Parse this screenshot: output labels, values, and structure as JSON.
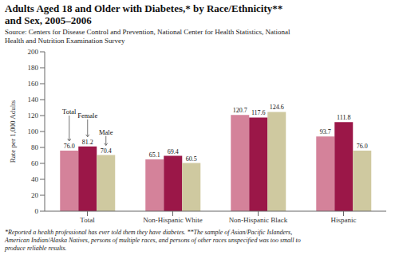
{
  "chart_data": {
    "type": "bar",
    "title": "Adults Aged 18 and Older with Diabetes,* by Race/Ethnicity**\nand Sex, 2005–2006",
    "subtitle": "Source: Centers for Disease Control and Prevention, National Center for Health Statistics, National\nHealth and Nutrition Examination Survey",
    "footnote": "*Reported a health professional has ever told them they have diabetes. **The sample of Asian/Pacific Islanders,\nAmerican Indian/Alaska Natives, persons of multiple races, and persons of other races unspecified was too small to\nproduce reliable results.",
    "categories": [
      "Total",
      "Non-Hispanic White",
      "Non-Hispanic Black",
      "Hispanic"
    ],
    "series": [
      {
        "name": "Total",
        "color": "#d4829a",
        "values": [
          76.0,
          65.1,
          120.7,
          93.7
        ],
        "value_labels": [
          "76.0",
          "65.1",
          "120.7",
          "93.7"
        ]
      },
      {
        "name": "Female",
        "color": "#9b1748",
        "values": [
          81.2,
          69.4,
          117.6,
          111.8
        ],
        "value_labels": [
          "81.2",
          "69.4",
          "117.6",
          "111.8"
        ]
      },
      {
        "name": "Male",
        "color": "#cfc9a0",
        "values": [
          70.4,
          60.5,
          124.6,
          76.0
        ],
        "value_labels": [
          "70.4",
          "60.5",
          "124.6",
          "76.0"
        ]
      }
    ],
    "annotations": [
      {
        "text": "Total",
        "series": "Total",
        "category": "Total"
      },
      {
        "text": "Female",
        "series": "Female",
        "category": "Total"
      },
      {
        "text": "Male",
        "series": "Male",
        "category": "Total"
      }
    ],
    "y_label": "Rate per 1,000 Adults",
    "ylim": [
      0,
      200
    ],
    "yticks": [
      0,
      20,
      40,
      60,
      80,
      100,
      120,
      140,
      160,
      180,
      200
    ],
    "grid": false,
    "data_labels": true
  }
}
